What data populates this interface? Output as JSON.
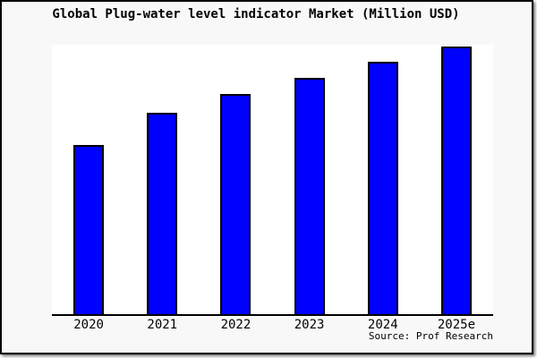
{
  "chart_data": {
    "type": "bar",
    "title": "Global Plug-water level indicator Market (Million USD)",
    "categories": [
      "2020",
      "2021",
      "2022",
      "2023",
      "2024",
      "2025e"
    ],
    "values": [
      63,
      75,
      82,
      88,
      94,
      100
    ],
    "values_note": "No y-axis, gridlines or value labels are rendered; values are relative bar heights read from pixels with 2025e = 100.",
    "xlabel": "",
    "ylabel": "",
    "ylim": [
      0,
      100.5
    ],
    "grid": false,
    "legend": null
  },
  "source_label": "Source: Prof Research",
  "colors": {
    "bar_fill": "#0000ff",
    "bar_border": "#000000",
    "plot_bg": "#ffffff",
    "canvas_bg": "#f8f8f8",
    "frame_border": "#000000",
    "text": "#000000"
  }
}
